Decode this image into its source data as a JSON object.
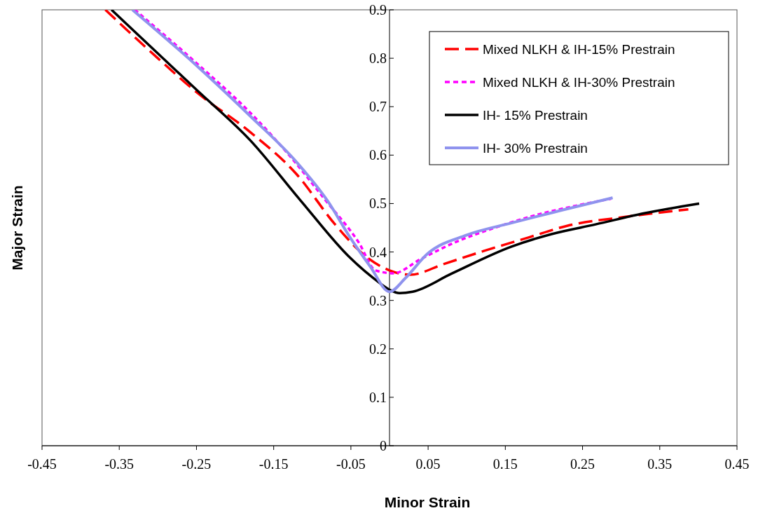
{
  "chart_data": {
    "type": "line",
    "xlabel": "Minor Strain",
    "ylabel": "Major Strain",
    "xlim": [
      -0.45,
      0.45
    ],
    "xticks": [
      -0.45,
      -0.35,
      -0.25,
      -0.15,
      -0.05,
      0.05,
      0.15,
      0.25,
      0.35,
      0.45
    ],
    "ylim": [
      0,
      0.9
    ],
    "yticks": [
      0,
      0.1,
      0.2,
      0.3,
      0.4,
      0.5,
      0.6,
      0.7,
      0.8,
      0.9
    ],
    "grid": false,
    "legend": "top right",
    "marker": "none",
    "series": [
      {
        "name": "Mixed NLKH & IH-15% Prestrain",
        "color": "#ff0000",
        "line_style": "dashed",
        "x": [
          -0.368,
          -0.3,
          -0.25,
          -0.18,
          -0.12,
          -0.07,
          -0.03,
          0.0,
          0.027,
          0.07,
          0.122,
          0.18,
          0.23,
          0.303,
          0.387
        ],
        "values": [
          0.9,
          0.8,
          0.73,
          0.647,
          0.56,
          0.456,
          0.39,
          0.362,
          0.353,
          0.375,
          0.402,
          0.43,
          0.454,
          0.472,
          0.488
        ]
      },
      {
        "name": "Mixed NLKH & IH-30% Prestrain",
        "color": "#ff00ff",
        "line_style": "dotted",
        "x": [
          -0.33,
          -0.25,
          -0.18,
          -0.13,
          -0.083,
          -0.04,
          -0.018,
          0.005,
          0.04,
          0.085,
          0.14,
          0.194,
          0.24,
          0.287
        ],
        "values": [
          0.9,
          0.79,
          0.687,
          0.6,
          0.507,
          0.42,
          0.362,
          0.356,
          0.385,
          0.42,
          0.452,
          0.478,
          0.495,
          0.51
        ]
      },
      {
        "name": "IH- 15% Prestrain",
        "color": "#000000",
        "line_style": "solid",
        "x": [
          -0.36,
          -0.3,
          -0.25,
          -0.18,
          -0.115,
          -0.051,
          -0.02,
          0.0,
          0.013,
          0.03,
          0.08,
          0.158,
          0.21,
          0.267,
          0.33,
          0.401
        ],
        "values": [
          0.9,
          0.81,
          0.735,
          0.63,
          0.506,
          0.388,
          0.345,
          0.322,
          0.315,
          0.318,
          0.355,
          0.411,
          0.437,
          0.457,
          0.48,
          0.5
        ]
      },
      {
        "name": "IH- 30% Prestrain",
        "color": "#8f93ee",
        "line_style": "solid",
        "x": [
          -0.333,
          -0.25,
          -0.18,
          -0.12,
          -0.08,
          -0.051,
          -0.025,
          0.0,
          0.02,
          0.049,
          0.1,
          0.158,
          0.22,
          0.289
        ],
        "values": [
          0.9,
          0.785,
          0.68,
          0.585,
          0.505,
          0.43,
          0.37,
          0.318,
          0.345,
          0.396,
          0.435,
          0.46,
          0.485,
          0.512
        ]
      }
    ]
  }
}
